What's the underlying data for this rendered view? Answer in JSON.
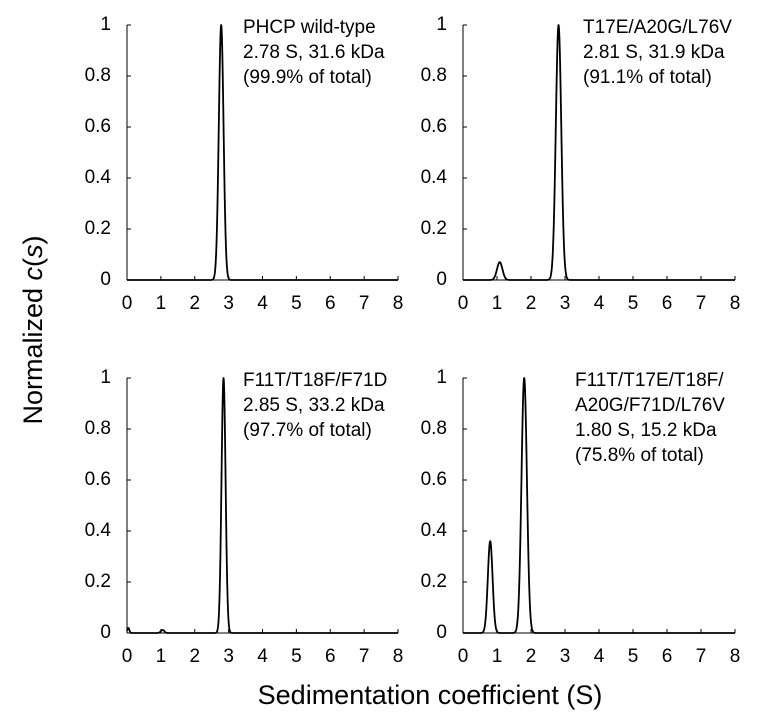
{
  "ylabel_prefix": "Normalized ",
  "ylabel_italic": "c",
  "ylabel_open": "(",
  "ylabel_var": "s",
  "ylabel_close": ")",
  "xlabel": "Sedimentation coefficient (S)",
  "chart_data": [
    {
      "type": "line",
      "xlim": [
        0,
        8
      ],
      "ylim": [
        0,
        1
      ],
      "xticks": [
        "0",
        "1",
        "2",
        "3",
        "4",
        "5",
        "6",
        "7",
        "8"
      ],
      "yticks": [
        "0",
        "0.2",
        "0.4",
        "0.6",
        "0.8",
        "1"
      ],
      "annotation": [
        "PHCP wild-type",
        "2.78 S, 31.6 kDa",
        "(99.9% of total)"
      ],
      "peaks": [
        {
          "center": 2.78,
          "height": 1.0,
          "width": 0.07
        }
      ]
    },
    {
      "type": "line",
      "xlim": [
        0,
        8
      ],
      "ylim": [
        0,
        1
      ],
      "xticks": [
        "0",
        "1",
        "2",
        "3",
        "4",
        "5",
        "6",
        "7",
        "8"
      ],
      "yticks": [
        "0",
        "0.2",
        "0.4",
        "0.6",
        "0.8",
        "1"
      ],
      "annotation": [
        "T17E/A20G/L76V",
        "2.81 S, 31.9 kDa",
        "(91.1% of total)"
      ],
      "peaks": [
        {
          "center": 1.08,
          "height": 0.07,
          "width": 0.08
        },
        {
          "center": 2.81,
          "height": 1.0,
          "width": 0.08
        }
      ]
    },
    {
      "type": "line",
      "xlim": [
        0,
        8
      ],
      "ylim": [
        0,
        1
      ],
      "xticks": [
        "0",
        "1",
        "2",
        "3",
        "4",
        "5",
        "6",
        "7",
        "8"
      ],
      "yticks": [
        "0",
        "0.2",
        "0.4",
        "0.6",
        "0.8",
        "1"
      ],
      "annotation": [
        "F11T/T18F/F71D",
        "2.85 S, 33.2 kDa",
        "(97.7% of total)"
      ],
      "peaks": [
        {
          "center": 0.04,
          "height": 0.02,
          "width": 0.03
        },
        {
          "center": 1.05,
          "height": 0.012,
          "width": 0.05
        },
        {
          "center": 2.85,
          "height": 1.0,
          "width": 0.06
        }
      ]
    },
    {
      "type": "line",
      "xlim": [
        0,
        8
      ],
      "ylim": [
        0,
        1
      ],
      "xticks": [
        "0",
        "1",
        "2",
        "3",
        "4",
        "5",
        "6",
        "7",
        "8"
      ],
      "yticks": [
        "0",
        "0.2",
        "0.4",
        "0.6",
        "0.8",
        "1"
      ],
      "annotation": [
        "F11T/T17E/T18F/",
        "A20G/F71D/L76V",
        "1.80 S, 15.2 kDa",
        "(75.8% of total)"
      ],
      "peaks": [
        {
          "center": 0.8,
          "height": 0.36,
          "width": 0.07
        },
        {
          "center": 1.8,
          "height": 1.0,
          "width": 0.08
        }
      ]
    }
  ]
}
